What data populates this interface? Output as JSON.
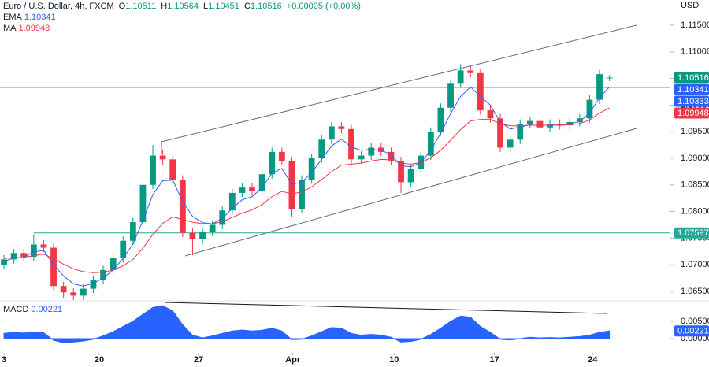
{
  "chart_data": {
    "type": "candlestick",
    "title": "Euro / U.S. Dollar, 4h, FXCM",
    "currency": "USD",
    "ohlc_labels": [
      "O",
      "H",
      "L",
      "C"
    ],
    "change": "+0.00005 (+0.00%)",
    "up_color": "#089981",
    "down_color": "#f23645",
    "xlim": [
      -0.4,
      67.06
    ],
    "xticks": [
      {
        "value": 0,
        "label": "3"
      },
      {
        "value": 9.6,
        "label": "20"
      },
      {
        "value": 19.6,
        "label": "27"
      },
      {
        "value": 29.1,
        "label": "Apr"
      },
      {
        "value": 39.3,
        "label": "10"
      },
      {
        "value": 49.4,
        "label": "17"
      },
      {
        "value": 59.3,
        "label": "24"
      }
    ],
    "ylim": [
      1.06322,
      1.11973
    ],
    "yticks": [
      {
        "value": 1.065,
        "label": "1.06500"
      },
      {
        "value": 1.07,
        "label": "1.07000"
      },
      {
        "value": 1.075,
        "label": "1.07500"
      },
      {
        "value": 1.08,
        "label": "1.08000"
      },
      {
        "value": 1.085,
        "label": "1.08500"
      },
      {
        "value": 1.09,
        "label": "1.09000"
      },
      {
        "value": 1.095,
        "label": "1.09500"
      },
      {
        "value": 1.1,
        "label": "1.10000"
      },
      {
        "value": 1.105,
        "label": "1.10500"
      },
      {
        "value": 1.11,
        "label": "1.11000"
      },
      {
        "value": 1.115,
        "label": "1.11500"
      }
    ],
    "open": [
      1.07,
      1.071,
      1.0722,
      1.0715,
      1.0738,
      1.0732,
      1.066,
      1.0648,
      1.0642,
      1.0655,
      1.0672,
      1.069,
      1.0712,
      1.0745,
      1.078,
      1.085,
      1.0905,
      1.0898,
      1.086,
      1.076,
      1.0748,
      1.0762,
      1.0775,
      1.0802,
      1.0835,
      1.0845,
      1.0838,
      1.087,
      1.0912,
      1.0895,
      1.0805,
      1.086,
      1.09,
      1.0935,
      1.096,
      1.0955,
      1.0898,
      1.0905,
      1.092,
      1.0912,
      1.0895,
      1.0855,
      1.088,
      1.0905,
      1.095,
      1.0995,
      1.104,
      1.1065,
      1.106,
      1.099,
      1.0975,
      1.092,
      1.0935,
      1.0965,
      1.097,
      1.0958,
      1.0965,
      1.0962,
      1.0968,
      1.0975,
      1.101,
      1.10511
    ],
    "high": [
      1.0718,
      1.073,
      1.073,
      1.0757,
      1.0746,
      1.074,
      1.0668,
      1.0656,
      1.0663,
      1.068,
      1.0698,
      1.072,
      1.0753,
      1.0788,
      1.0858,
      1.0925,
      1.0915,
      1.0906,
      1.0868,
      1.0768,
      1.077,
      1.0783,
      1.081,
      1.0843,
      1.0853,
      1.0853,
      1.0878,
      1.092,
      1.092,
      1.0903,
      1.0868,
      1.0908,
      1.0943,
      1.0968,
      1.0968,
      1.0963,
      1.0913,
      1.0928,
      1.0928,
      1.092,
      1.0903,
      1.0888,
      1.0913,
      1.0958,
      1.1003,
      1.1048,
      1.1077,
      1.1073,
      1.1068,
      1.0998,
      1.0983,
      1.0943,
      1.0973,
      1.0978,
      1.0978,
      1.0973,
      1.0973,
      1.0976,
      1.0983,
      1.1018,
      1.1066,
      1.10564
    ],
    "low": [
      1.0692,
      1.0702,
      1.0707,
      1.0707,
      1.0724,
      1.0652,
      1.0638,
      1.0634,
      1.0634,
      1.0647,
      1.0664,
      1.0682,
      1.0704,
      1.0737,
      1.0772,
      1.0842,
      1.0888,
      1.0852,
      1.0752,
      1.0718,
      1.0738,
      1.0754,
      1.0767,
      1.0794,
      1.0827,
      1.083,
      1.083,
      1.0862,
      1.0887,
      1.079,
      1.0797,
      1.0852,
      1.0892,
      1.0927,
      1.0947,
      1.089,
      1.089,
      1.0897,
      1.0904,
      1.0887,
      1.0835,
      1.0847,
      1.0872,
      1.0897,
      1.0942,
      1.0987,
      1.1032,
      1.1052,
      1.0982,
      1.0967,
      1.0912,
      1.0912,
      1.0927,
      1.0957,
      1.095,
      1.095,
      1.0954,
      1.0954,
      1.096,
      1.0967,
      1.1002,
      1.10451
    ],
    "close": [
      1.071,
      1.0722,
      1.0715,
      1.0738,
      1.0732,
      1.066,
      1.0648,
      1.0642,
      1.0655,
      1.0672,
      1.069,
      1.0712,
      1.0745,
      1.078,
      1.085,
      1.0905,
      1.0898,
      1.086,
      1.076,
      1.0748,
      1.0762,
      1.0775,
      1.0802,
      1.0835,
      1.0845,
      1.0838,
      1.087,
      1.0912,
      1.0895,
      1.0805,
      1.086,
      1.09,
      1.0935,
      1.096,
      1.0955,
      1.0898,
      1.0905,
      1.092,
      1.0912,
      1.0895,
      1.0855,
      1.088,
      1.0905,
      1.095,
      1.0995,
      1.104,
      1.1065,
      1.106,
      1.099,
      1.0975,
      1.092,
      1.0935,
      1.0965,
      1.097,
      1.0958,
      1.0965,
      1.0962,
      1.0968,
      1.0975,
      1.101,
      1.1058,
      1.10516
    ],
    "series": [
      {
        "name": "EMA",
        "color": "#2962ff",
        "values": [
          1.0706,
          1.0713,
          1.0714,
          1.0724,
          1.0727,
          1.07,
          1.0679,
          1.0664,
          1.066,
          1.0665,
          1.0675,
          1.069,
          1.0712,
          1.0739,
          1.0783,
          1.0832,
          1.0858,
          1.0859,
          1.0819,
          1.0791,
          1.0779,
          1.0777,
          1.0787,
          1.0806,
          1.0822,
          1.0828,
          1.0845,
          1.0872,
          1.0881,
          1.0851,
          1.0855,
          1.0873,
          1.0898,
          1.0923,
          1.0936,
          1.0921,
          1.0915,
          1.0917,
          1.0915,
          1.0907,
          1.0886,
          1.0884,
          1.0892,
          1.0915,
          1.0947,
          1.0984,
          1.1016,
          1.1034,
          1.1016,
          1.1,
          1.0968,
          1.0955,
          1.0959,
          1.0963,
          1.0961,
          1.0963,
          1.0962,
          1.0965,
          1.0969,
          1.0985,
          1.1014,
          1.10341
        ]
      },
      {
        "name": "MA",
        "color": "#f23645",
        "values": [
          1.0712,
          1.0713,
          1.0714,
          1.0717,
          1.072,
          1.0711,
          1.0701,
          1.0692,
          1.0687,
          1.0685,
          1.0686,
          1.069,
          1.0698,
          1.071,
          1.0731,
          1.0757,
          1.0778,
          1.079,
          1.0785,
          1.078,
          1.0777,
          1.0777,
          1.0781,
          1.0789,
          1.0797,
          1.0803,
          1.0813,
          1.0828,
          1.0838,
          1.0833,
          1.0837,
          1.0846,
          1.086,
          1.0875,
          1.0887,
          1.0889,
          1.0891,
          1.0895,
          1.0898,
          1.0897,
          1.0891,
          1.0889,
          1.0892,
          1.0901,
          1.0915,
          1.0934,
          1.0954,
          1.097,
          1.0973,
          1.0973,
          1.0965,
          1.0961,
          1.0961,
          1.0962,
          1.0962,
          1.0962,
          1.0962,
          1.0963,
          1.0965,
          1.0972,
          1.0985,
          1.09948
        ]
      }
    ],
    "levels": [
      {
        "value": 1.10333,
        "color": "#2962ff"
      },
      {
        "value": 1.07597,
        "color": "#22ab94"
      }
    ],
    "macd": {
      "name": "MACD",
      "color": "#2962ff",
      "ylim": [
        -0.0041,
        0.0109
      ],
      "yticks": [
        {
          "value": 0,
          "label": "0.00000"
        },
        {
          "value": 0.005,
          "label": "0.00500"
        }
      ],
      "values": [
        0.0015,
        0.0018,
        0.0016,
        0.0019,
        0.0017,
        -0.0005,
        -0.0012,
        -0.001,
        -0.0007,
        -0.0002,
        0.0008,
        0.002,
        0.0035,
        0.005,
        0.007,
        0.009,
        0.0095,
        0.008,
        0.004,
        0.001,
        0.0002,
        0.0008,
        0.0015,
        0.0022,
        0.0025,
        0.0022,
        0.0024,
        0.003,
        0.0022,
        -0.0003,
        -0.0002,
        0.0008,
        0.002,
        0.0032,
        0.003,
        0.0015,
        0.001,
        0.0012,
        0.001,
        0.0004,
        -0.001,
        -0.0008,
        -0.0002,
        0.0012,
        0.003,
        0.005,
        0.0065,
        0.0062,
        0.0035,
        0.0018,
        -0.0002,
        -0.0004,
        0,
        0.0004,
        0.0002,
        0.0003,
        0.0002,
        0.0004,
        0.0006,
        0.001,
        0.0018,
        0.00221
      ]
    }
  }
}
